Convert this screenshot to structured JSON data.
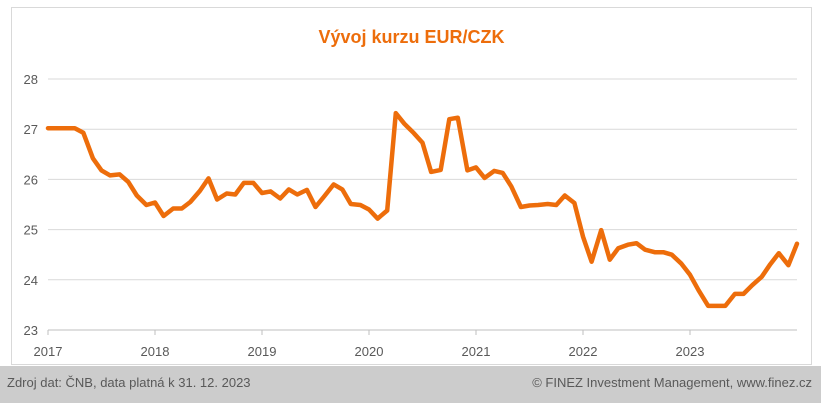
{
  "chart_data": {
    "type": "line",
    "title": "Vývoj kurzu EUR/CZK",
    "xlabel": "",
    "ylabel": "",
    "ylim": [
      23,
      28
    ],
    "xlim": [
      2017,
      2024
    ],
    "grid": "horizontal",
    "line_color": "#ed6d0b",
    "y_ticks": [
      "23",
      "24",
      "25",
      "26",
      "27",
      "28"
    ],
    "x_ticks": [
      "2017",
      "2018",
      "2019",
      "2020",
      "2021",
      "2022",
      "2023"
    ],
    "series": [
      {
        "x": [
          2017.0,
          2017.08,
          2017.17,
          2017.25,
          2017.33,
          2017.42,
          2017.5,
          2017.58,
          2017.67,
          2017.75,
          2017.83,
          2017.92,
          2018.0,
          2018.08,
          2018.17,
          2018.25,
          2018.33,
          2018.42,
          2018.5,
          2018.58,
          2018.67,
          2018.75,
          2018.83,
          2018.92,
          2019.0,
          2019.08,
          2019.17,
          2019.25,
          2019.33,
          2019.42,
          2019.5,
          2019.58,
          2019.67,
          2019.75,
          2019.83,
          2019.92,
          2020.0,
          2020.08,
          2020.17,
          2020.25,
          2020.33,
          2020.42,
          2020.5,
          2020.58,
          2020.67,
          2020.75,
          2020.83,
          2020.92,
          2021.0,
          2021.08,
          2021.17,
          2021.25,
          2021.33,
          2021.42,
          2021.5,
          2021.58,
          2021.67,
          2021.75,
          2021.83,
          2021.92,
          2022.0,
          2022.08,
          2022.17,
          2022.25,
          2022.33,
          2022.42,
          2022.5,
          2022.58,
          2022.67,
          2022.75,
          2022.83,
          2022.92,
          2023.0,
          2023.08,
          2023.17,
          2023.25,
          2023.33,
          2023.42,
          2023.5,
          2023.58,
          2023.67,
          2023.75,
          2023.83,
          2023.92,
          2024.0
        ],
        "values": [
          27.02,
          27.02,
          27.02,
          27.02,
          26.93,
          26.42,
          26.18,
          26.08,
          26.1,
          25.95,
          25.68,
          25.49,
          25.54,
          25.27,
          25.42,
          25.42,
          25.55,
          25.77,
          26.02,
          25.6,
          25.72,
          25.7,
          25.93,
          25.93,
          25.73,
          25.76,
          25.62,
          25.8,
          25.7,
          25.79,
          25.45,
          25.66,
          25.9,
          25.8,
          25.51,
          25.49,
          25.4,
          25.22,
          25.38,
          27.32,
          27.11,
          26.92,
          26.73,
          26.15,
          26.19,
          27.2,
          27.23,
          26.18,
          26.24,
          26.03,
          26.17,
          26.13,
          25.86,
          25.45,
          25.48,
          25.49,
          25.51,
          25.49,
          25.68,
          25.53,
          24.86,
          24.36,
          24.99,
          24.4,
          24.63,
          24.7,
          24.73,
          24.6,
          24.55,
          24.55,
          24.5,
          24.32,
          24.1,
          23.79,
          23.48,
          23.48,
          23.48,
          23.72,
          23.72,
          23.89,
          24.06,
          24.31,
          24.53,
          24.29,
          24.72
        ]
      }
    ]
  },
  "footer": {
    "source": "Zdroj dat: ČNB, data platná k 31. 12. 2023",
    "credit": "© FINEZ Investment Management, www.finez.cz"
  }
}
